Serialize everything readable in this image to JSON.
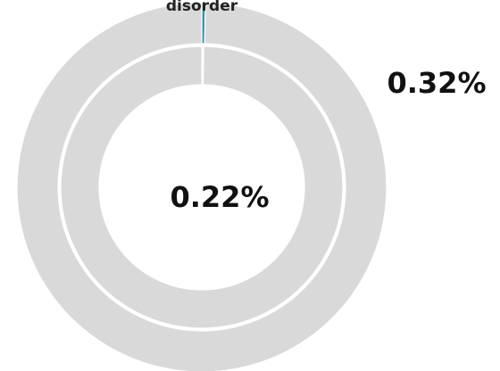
{
  "chart_data": {
    "type": "pie",
    "variant": "nested-donut",
    "rings": [
      {
        "ring": "outer",
        "value_label": "0.32%",
        "slices": [
          {
            "label": "disorder",
            "value": 0.32,
            "color": "#3a95a8"
          },
          {
            "label": "",
            "value": 99.68,
            "color": "#d9d9d9"
          }
        ]
      },
      {
        "ring": "inner",
        "value_label": "0.22%",
        "slices": [
          {
            "label": "",
            "value": 0.22,
            "color": "#ffffff"
          },
          {
            "label": "",
            "value": 99.78,
            "color": "#d9d9d9"
          }
        ]
      }
    ],
    "category_label": "disorder",
    "legend": "none"
  }
}
